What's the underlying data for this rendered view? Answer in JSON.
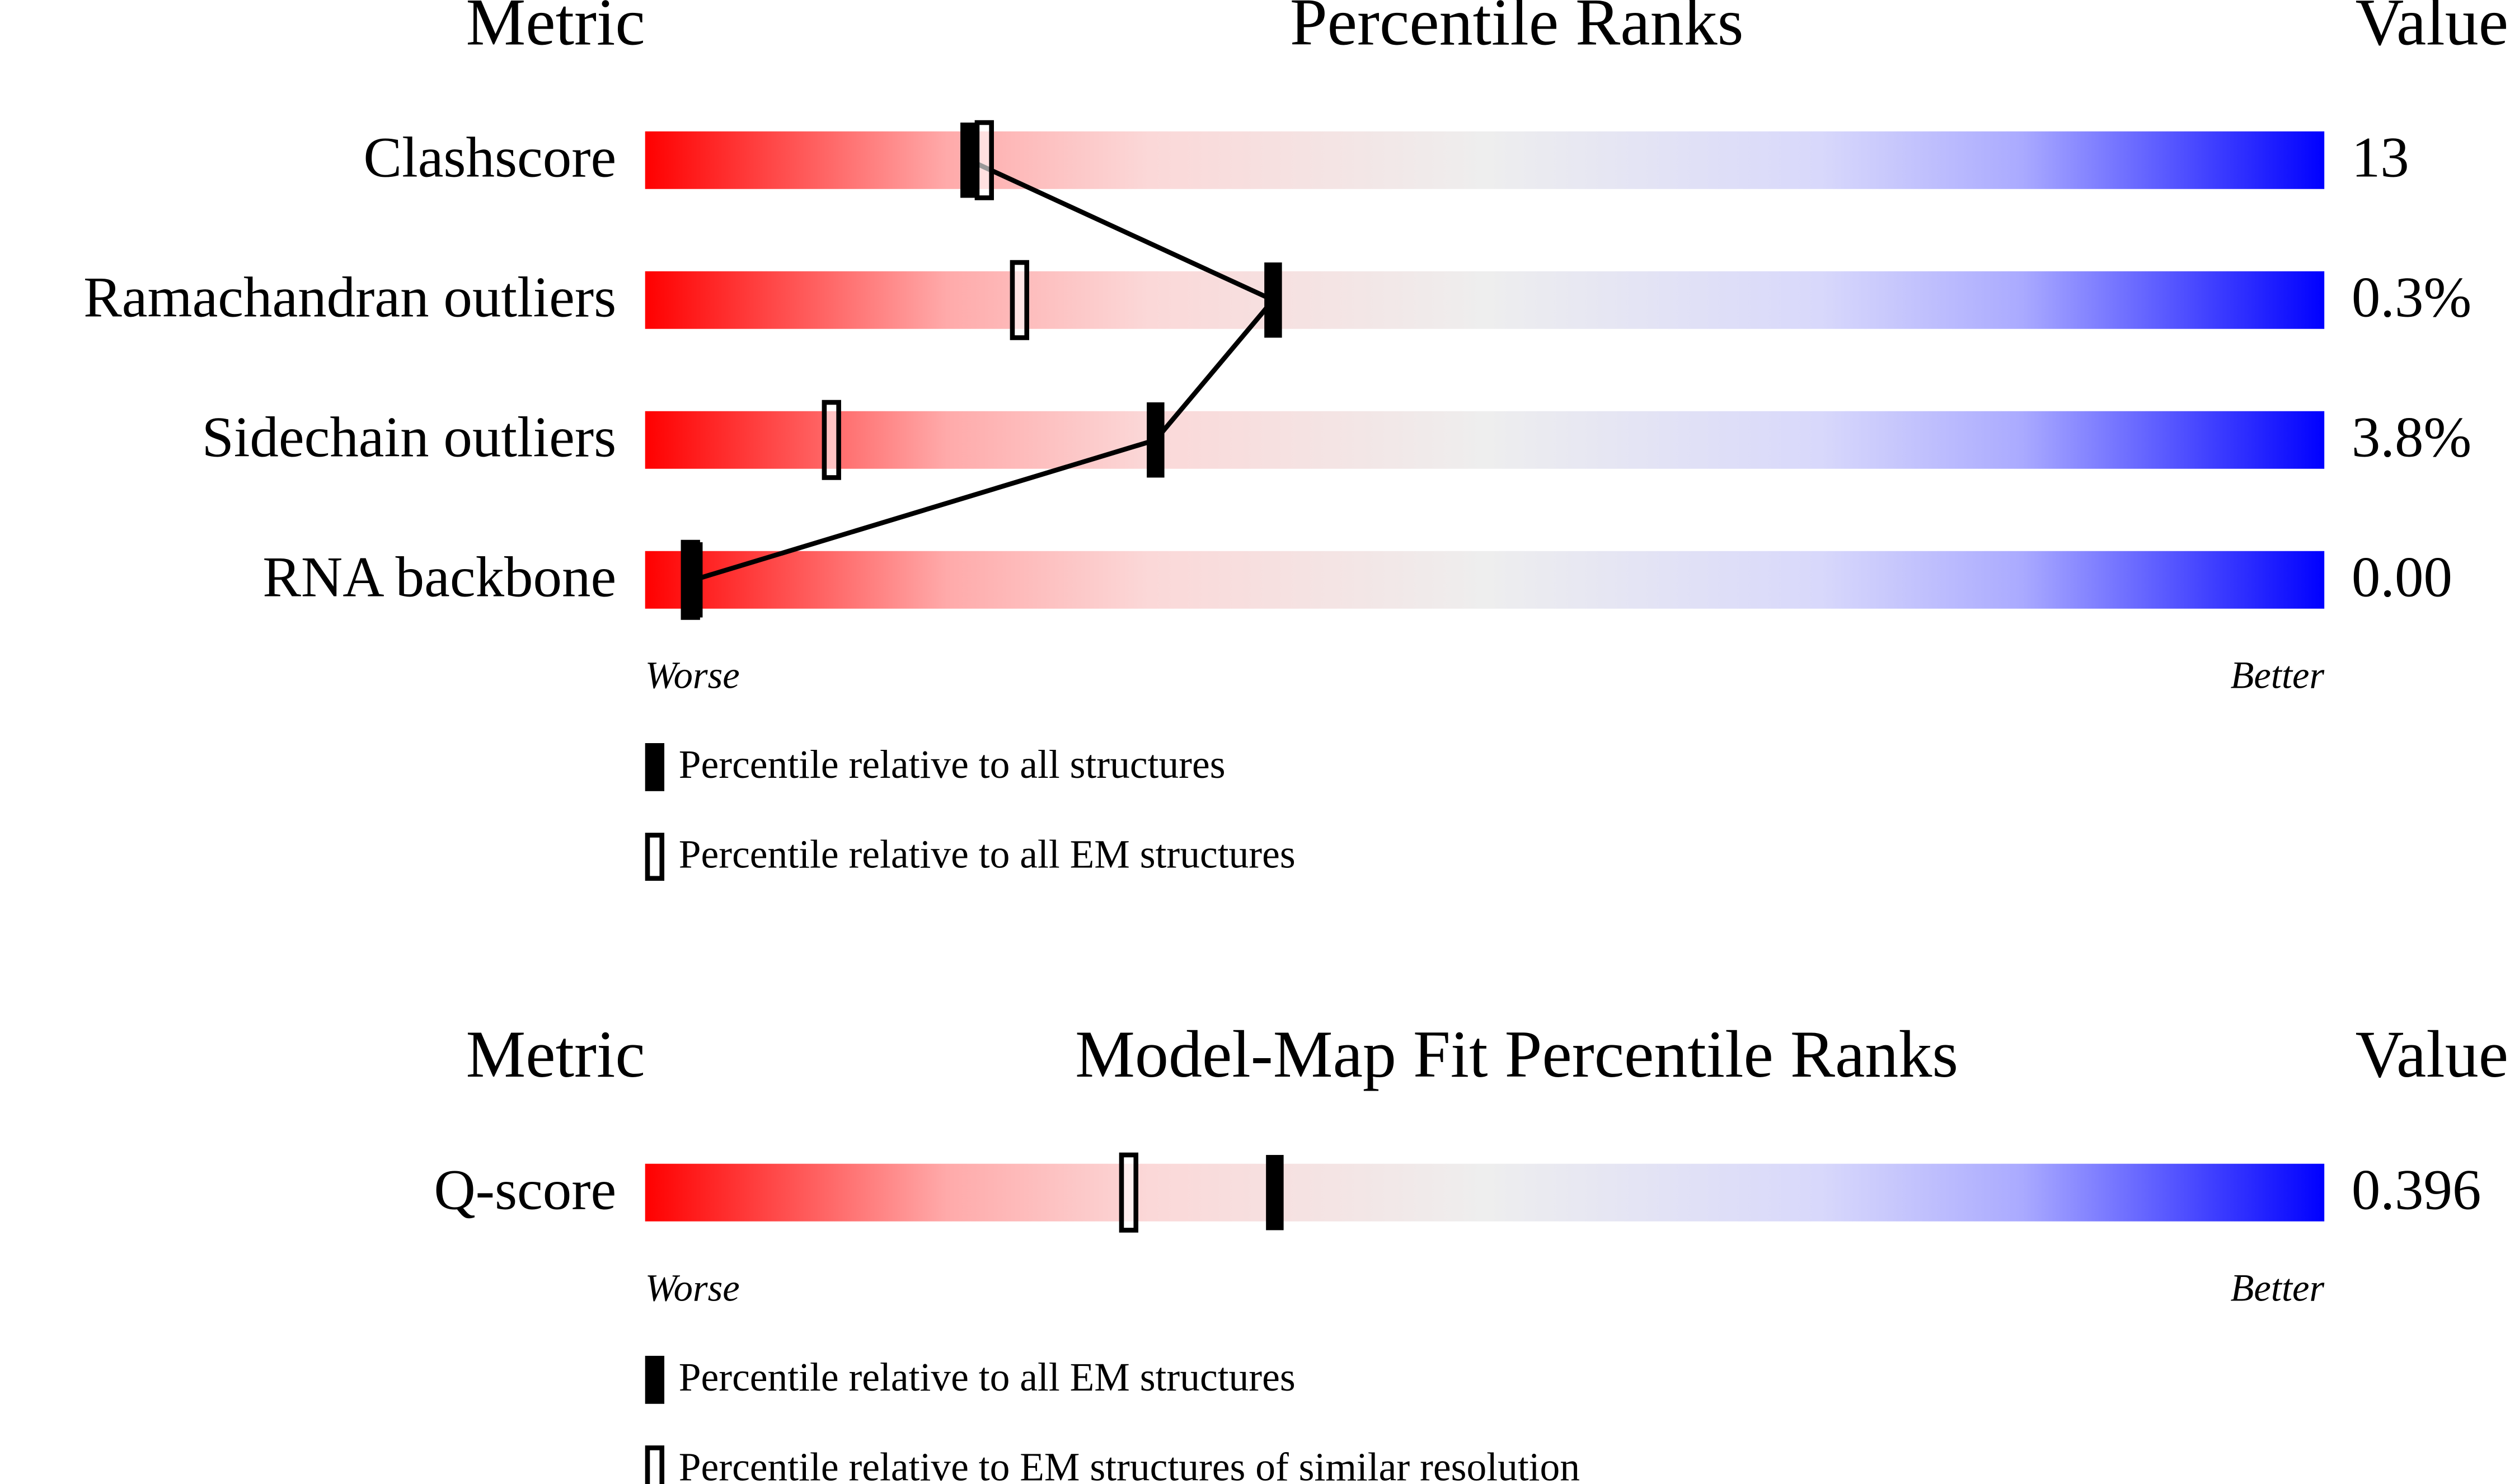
{
  "chart_data": [
    {
      "type": "percentile",
      "metric_header": "Metric",
      "title": "Percentile Ranks",
      "value_header": "Value",
      "categories": [
        "Clashscore",
        "Ramachandran outliers",
        "Sidechain outliers",
        "RNA backbone"
      ],
      "metric_values": [
        "13",
        "0.3%",
        "3.8%",
        "0.00"
      ],
      "xlim": [
        0,
        100
      ],
      "x_low_label": "Worse",
      "x_high_label": "Better",
      "connect_filled": true,
      "series": [
        {
          "name": "Percentile relative to all structures",
          "style": "filled",
          "color": "#000000",
          "values": [
            19.3,
            37.4,
            30.4,
            2.9
          ]
        },
        {
          "name": "Percentile relative to all EM structures",
          "style": "open",
          "color": "#000000",
          "values": [
            20.2,
            22.3,
            11.1,
            2.7
          ]
        }
      ]
    },
    {
      "type": "percentile",
      "metric_header": "Metric",
      "title": "Model-Map Fit Percentile Ranks",
      "value_header": "Value",
      "categories": [
        "Q-score"
      ],
      "metric_values": [
        "0.396"
      ],
      "xlim": [
        0,
        100
      ],
      "x_low_label": "Worse",
      "x_high_label": "Better",
      "connect_filled": true,
      "series": [
        {
          "name": "Percentile relative to all EM structures",
          "style": "filled",
          "color": "#000000",
          "values": [
            37.5
          ]
        },
        {
          "name": "Percentile relative to EM structures of similar resolution",
          "style": "open",
          "color": "#000000",
          "values": [
            28.8
          ]
        }
      ]
    }
  ]
}
